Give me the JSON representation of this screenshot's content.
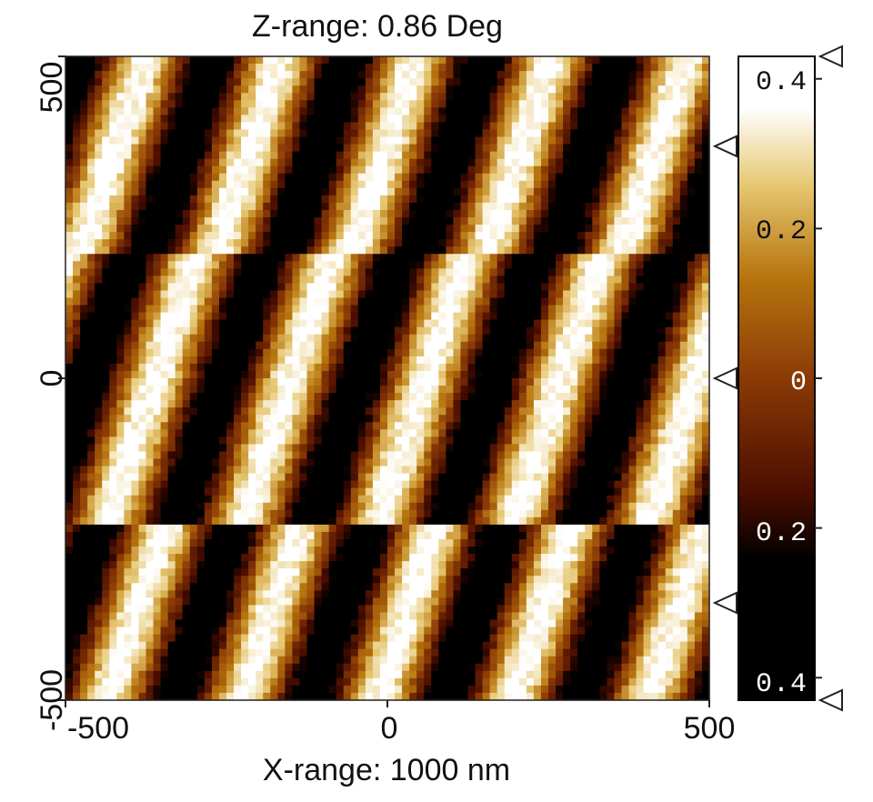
{
  "chart_data": {
    "type": "heatmap",
    "title": "Z-range: 0.86 Deg",
    "xlabel": "X-range: 1000 nm",
    "ylabel": "",
    "xlim": [
      -500,
      500
    ],
    "ylim": [
      -500,
      500
    ],
    "x_ticks": [
      "-500",
      "0",
      "500"
    ],
    "y_ticks": [
      "-500",
      "0",
      "500"
    ],
    "z_range": 0.86,
    "z_unit": "Deg",
    "colorbar": {
      "range": [
        -0.43,
        0.43
      ],
      "ticks": [
        "0.4",
        "0.2",
        "0",
        "0.2",
        "0.4"
      ],
      "tick_values": [
        0.4,
        0.2,
        0,
        -0.2,
        -0.4
      ],
      "marker_values": [
        0.43,
        0.31,
        0.0,
        -0.3,
        -0.43
      ],
      "colormap": [
        "#000000",
        "#5a1200",
        "#8b3a05",
        "#b8700f",
        "#d9aa3a",
        "#f5e6b5",
        "#ffffff"
      ]
    },
    "pattern": {
      "description_values": {
        "stripe_period_nm": 210,
        "stripe_tilt_x_per_y": 0.33,
        "row_break_y_nm": [
          -230,
          190
        ],
        "row_shift_nm": 60,
        "amplitude_deg": 0.38
      }
    }
  }
}
